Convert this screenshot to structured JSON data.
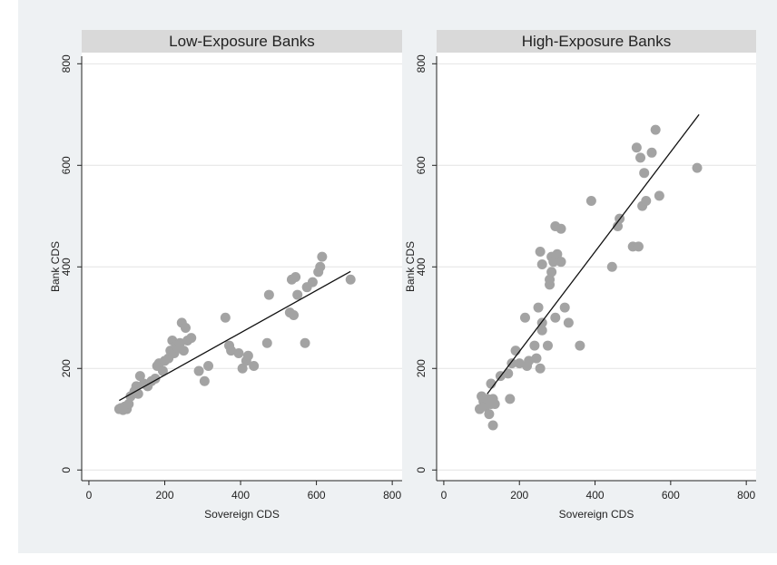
{
  "chart_data": [
    {
      "type": "scatter",
      "title": "Low-Exposure Banks",
      "x_label": "Sovereign CDS",
      "y_label": "Bank CDS",
      "xlim": [
        -19,
        826
      ],
      "ylim": [
        -21,
        822
      ],
      "xticks": [
        0,
        200,
        400,
        600,
        800
      ],
      "yticks": [
        0,
        200,
        400,
        600,
        800
      ],
      "grid": true,
      "color": "#a3a3a3",
      "x": [
        80,
        85,
        90,
        95,
        100,
        105,
        110,
        120,
        125,
        130,
        135,
        145,
        155,
        165,
        175,
        180,
        185,
        195,
        200,
        210,
        215,
        220,
        225,
        230,
        235,
        240,
        245,
        250,
        255,
        260,
        270,
        290,
        305,
        315,
        360,
        370,
        375,
        395,
        405,
        415,
        420,
        435,
        470,
        475,
        530,
        535,
        540,
        545,
        550,
        570,
        575,
        590,
        605,
        610,
        615,
        690
      ],
      "y": [
        120,
        122,
        118,
        125,
        120,
        130,
        145,
        155,
        165,
        150,
        185,
        170,
        165,
        175,
        180,
        205,
        210,
        195,
        215,
        220,
        235,
        255,
        230,
        245,
        240,
        250,
        290,
        235,
        280,
        255,
        260,
        195,
        175,
        205,
        300,
        245,
        235,
        230,
        200,
        215,
        225,
        205,
        250,
        345,
        310,
        375,
        305,
        380,
        345,
        250,
        360,
        370,
        390,
        400,
        420,
        375
      ],
      "fit": {
        "x": [
          80,
          690
        ],
        "y": [
          137,
          391
        ]
      }
    },
    {
      "type": "scatter",
      "title": "High-Exposure Banks",
      "x_label": "Sovereign CDS",
      "y_label": "Bank CDS",
      "xlim": [
        -19,
        826
      ],
      "ylim": [
        -21,
        822
      ],
      "xticks": [
        0,
        200,
        400,
        600,
        800
      ],
      "yticks": [
        0,
        200,
        400,
        600,
        800
      ],
      "grid": true,
      "color": "#a3a3a3",
      "x": [
        95,
        100,
        105,
        110,
        115,
        120,
        125,
        130,
        130,
        125,
        135,
        150,
        170,
        175,
        180,
        190,
        200,
        215,
        220,
        225,
        240,
        245,
        250,
        255,
        255,
        260,
        260,
        260,
        275,
        280,
        280,
        285,
        285,
        290,
        295,
        295,
        300,
        310,
        310,
        320,
        330,
        360,
        390,
        445,
        460,
        465,
        500,
        510,
        515,
        520,
        525,
        530,
        535,
        550,
        560,
        570,
        670
      ],
      "y": [
        120,
        145,
        135,
        125,
        140,
        110,
        130,
        88,
        140,
        170,
        130,
        185,
        190,
        140,
        210,
        235,
        210,
        300,
        205,
        215,
        245,
        220,
        320,
        200,
        430,
        290,
        275,
        405,
        245,
        365,
        375,
        390,
        420,
        410,
        480,
        300,
        425,
        475,
        410,
        320,
        290,
        245,
        530,
        400,
        480,
        495,
        440,
        635,
        440,
        615,
        520,
        585,
        530,
        625,
        670,
        540,
        595
      ],
      "fit": {
        "x": [
          115,
          675
        ],
        "y": [
          150,
          700
        ]
      }
    }
  ]
}
